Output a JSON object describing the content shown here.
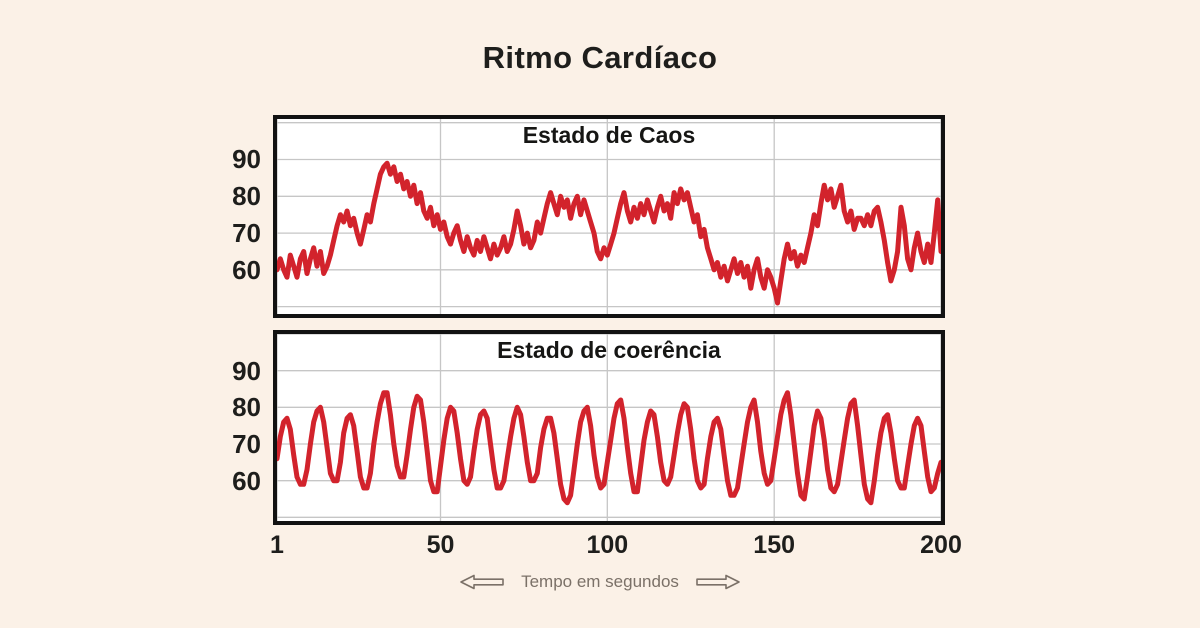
{
  "page": {
    "title": "Ritmo Cardíaco"
  },
  "colors": {
    "background": "#FBF1E7",
    "chart_background": "#FFFFFF",
    "border": "#121212",
    "grid": "#C6C6C6",
    "line": "#D2232C",
    "text": "#1E1E1C",
    "caption": "#7B7168"
  },
  "x_axis": {
    "ticks": [
      1,
      50,
      100,
      150,
      200
    ],
    "label": "Tempo em segundos",
    "left_icon": "arrow-left",
    "right_icon": "arrow-right"
  },
  "chart_data": [
    {
      "type": "line",
      "title": "Estado de Caos",
      "x_start": 1,
      "xlim": [
        1,
        200
      ],
      "ylim": [
        48,
        101
      ],
      "grid_x": [
        1,
        50,
        100,
        150,
        200
      ],
      "grid_y": [
        50,
        60,
        70,
        80,
        90,
        100
      ],
      "yticks": [
        60,
        70,
        80,
        90
      ],
      "line_color": "#D2232C",
      "line_width": 5,
      "xlabel": "Tempo em segundos",
      "values": [
        60,
        63,
        60,
        58,
        64,
        61,
        58,
        63,
        65,
        59,
        63,
        66,
        61,
        65,
        59,
        61,
        64,
        68,
        72,
        75,
        73,
        76,
        72,
        74,
        70,
        67,
        71,
        75,
        73,
        78,
        82,
        86,
        88,
        89,
        86,
        88,
        84,
        86,
        82,
        84,
        80,
        83,
        78,
        81,
        76,
        74,
        77,
        72,
        75,
        71,
        73,
        69,
        67,
        70,
        72,
        68,
        65,
        69,
        66,
        64,
        68,
        65,
        69,
        66,
        63,
        67,
        64,
        66,
        69,
        65,
        67,
        71,
        76,
        72,
        67,
        70,
        66,
        68,
        73,
        70,
        74,
        78,
        81,
        78,
        75,
        80,
        77,
        79,
        74,
        78,
        80,
        75,
        79,
        76,
        73,
        70,
        65,
        63,
        66,
        64,
        67,
        70,
        74,
        78,
        81,
        76,
        73,
        77,
        74,
        78,
        75,
        79,
        76,
        73,
        77,
        80,
        76,
        78,
        74,
        81,
        78,
        82,
        79,
        81,
        77,
        73,
        75,
        69,
        71,
        66,
        63,
        60,
        62,
        58,
        61,
        57,
        60,
        63,
        59,
        62,
        58,
        61,
        55,
        60,
        63,
        58,
        55,
        60,
        58,
        55,
        51,
        57,
        63,
        67,
        63,
        65,
        61,
        64,
        62,
        66,
        70,
        75,
        72,
        78,
        83,
        79,
        82,
        77,
        80,
        83,
        76,
        73,
        76,
        71,
        74,
        74,
        72,
        75,
        72,
        76,
        77,
        73,
        68,
        62,
        57,
        60,
        65,
        77,
        72,
        63,
        60,
        66,
        70,
        65,
        62,
        67,
        62,
        70,
        79,
        65
      ]
    },
    {
      "type": "line",
      "title": "Estado de coerência",
      "x_start": 1,
      "xlim": [
        1,
        200
      ],
      "ylim": [
        49,
        100
      ],
      "grid_x": [
        1,
        50,
        100,
        150,
        200
      ],
      "grid_y": [
        50,
        60,
        70,
        80,
        90,
        100
      ],
      "yticks": [
        60,
        70,
        80,
        90
      ],
      "line_color": "#D2232C",
      "line_width": 5,
      "xlabel": "Tempo em segundos",
      "values": [
        66,
        72,
        76,
        77,
        74,
        67,
        61,
        59,
        59,
        63,
        70,
        76,
        79,
        80,
        76,
        69,
        62,
        60,
        60,
        65,
        73,
        77,
        78,
        75,
        68,
        61,
        58,
        58,
        62,
        70,
        76,
        81,
        84,
        84,
        78,
        70,
        64,
        61,
        61,
        67,
        74,
        80,
        83,
        82,
        76,
        68,
        60,
        57,
        57,
        64,
        71,
        77,
        80,
        79,
        73,
        66,
        60,
        59,
        61,
        68,
        74,
        78,
        79,
        77,
        70,
        63,
        58,
        58,
        60,
        66,
        72,
        77,
        80,
        78,
        72,
        65,
        60,
        60,
        62,
        69,
        74,
        77,
        77,
        73,
        66,
        59,
        55,
        54,
        56,
        63,
        70,
        76,
        79,
        80,
        75,
        67,
        61,
        58,
        59,
        65,
        71,
        77,
        81,
        82,
        77,
        69,
        62,
        57,
        57,
        64,
        71,
        76,
        79,
        78,
        72,
        65,
        60,
        59,
        61,
        67,
        73,
        78,
        81,
        80,
        74,
        66,
        60,
        58,
        59,
        66,
        72,
        76,
        77,
        74,
        67,
        60,
        56,
        56,
        58,
        64,
        70,
        76,
        80,
        82,
        76,
        68,
        62,
        59,
        60,
        66,
        72,
        78,
        82,
        84,
        78,
        70,
        62,
        56,
        55,
        61,
        68,
        75,
        79,
        77,
        71,
        63,
        58,
        57,
        59,
        65,
        71,
        77,
        81,
        82,
        75,
        67,
        59,
        55,
        54,
        60,
        67,
        73,
        77,
        78,
        73,
        66,
        60,
        58,
        58,
        64,
        70,
        75,
        77,
        75,
        68,
        61,
        57,
        58,
        62,
        65
      ]
    }
  ]
}
